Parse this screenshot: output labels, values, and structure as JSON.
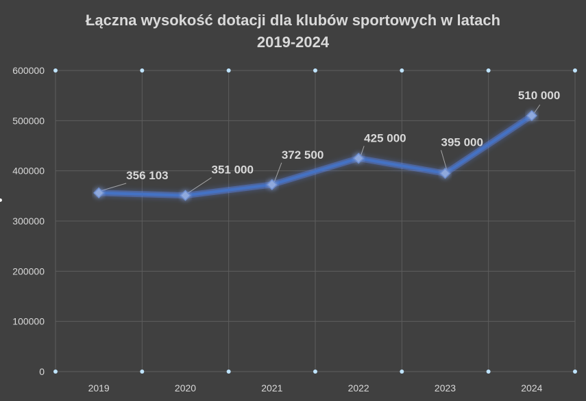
{
  "chart_data": {
    "type": "line",
    "title_lines": [
      "Łączna wysokość dotacji dla klubów sportowych w latach",
      "2019-2024"
    ],
    "categories": [
      "2019",
      "2020",
      "2021",
      "2022",
      "2023",
      "2024"
    ],
    "series": [
      {
        "values": [
          356103,
          351000,
          372500,
          425000,
          395000,
          510000
        ],
        "labels": [
          "356 103",
          "351 000",
          "372 500",
          "425 000",
          "395 000",
          "510 000"
        ]
      }
    ],
    "yticks": [
      "0",
      "100000",
      "200000",
      "300000",
      "400000",
      "500000",
      "600000"
    ],
    "ylim": [
      0,
      600000
    ],
    "xlabel": "",
    "ylabel": "",
    "grid": true,
    "legend": "none",
    "colors": {
      "background": "#404040",
      "grid": "#5e5e5e",
      "line": "#4472c4",
      "glow": "#5b8bff",
      "marker": "#8fa9dc",
      "text": "#d9d9d9",
      "gridpoint": "#bfe4ff"
    }
  }
}
